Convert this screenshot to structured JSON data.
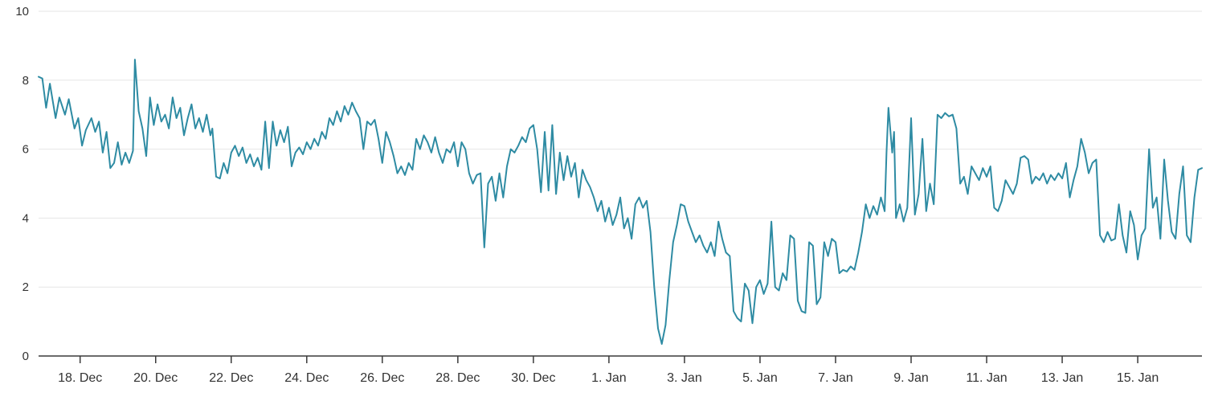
{
  "chart_data": {
    "type": "line",
    "title": "",
    "xlabel": "",
    "ylabel": "",
    "legend": "none",
    "grid": "horizontal",
    "ylim": [
      0,
      10
    ],
    "y_ticks": [
      0,
      2,
      4,
      6,
      8,
      10
    ],
    "x_domain": [
      0,
      30.8
    ],
    "x_ticks": [
      {
        "x": 1.1,
        "label": "18. Dec"
      },
      {
        "x": 3.1,
        "label": "20. Dec"
      },
      {
        "x": 5.1,
        "label": "22. Dec"
      },
      {
        "x": 7.1,
        "label": "24. Dec"
      },
      {
        "x": 9.1,
        "label": "26. Dec"
      },
      {
        "x": 11.1,
        "label": "28. Dec"
      },
      {
        "x": 13.1,
        "label": "30. Dec"
      },
      {
        "x": 15.1,
        "label": "1. Jan"
      },
      {
        "x": 17.1,
        "label": "3. Jan"
      },
      {
        "x": 19.1,
        "label": "5. Jan"
      },
      {
        "x": 21.1,
        "label": "7. Jan"
      },
      {
        "x": 23.1,
        "label": "9. Jan"
      },
      {
        "x": 25.1,
        "label": "11. Jan"
      },
      {
        "x": 27.1,
        "label": "13. Jan"
      },
      {
        "x": 29.1,
        "label": "15. Jan"
      }
    ],
    "colors": {
      "series": "#2e8ba3",
      "gridline": "#e6e6e6",
      "axis": "#3a3a3a",
      "text": "#333333"
    },
    "points": [
      [
        0,
        8.1
      ],
      [
        0.1,
        8.05
      ],
      [
        0.2,
        7.2
      ],
      [
        0.3,
        7.9
      ],
      [
        0.45,
        6.9
      ],
      [
        0.55,
        7.5
      ],
      [
        0.7,
        7.0
      ],
      [
        0.8,
        7.45
      ],
      [
        0.95,
        6.6
      ],
      [
        1.05,
        6.9
      ],
      [
        1.15,
        6.1
      ],
      [
        1.25,
        6.55
      ],
      [
        1.4,
        6.9
      ],
      [
        1.5,
        6.5
      ],
      [
        1.6,
        6.8
      ],
      [
        1.7,
        5.9
      ],
      [
        1.8,
        6.5
      ],
      [
        1.9,
        5.45
      ],
      [
        2.0,
        5.6
      ],
      [
        2.1,
        6.2
      ],
      [
        2.2,
        5.55
      ],
      [
        2.3,
        5.9
      ],
      [
        2.4,
        5.6
      ],
      [
        2.5,
        5.95
      ],
      [
        2.55,
        8.6
      ],
      [
        2.65,
        7.1
      ],
      [
        2.75,
        6.6
      ],
      [
        2.85,
        5.8
      ],
      [
        2.95,
        7.5
      ],
      [
        3.05,
        6.7
      ],
      [
        3.15,
        7.3
      ],
      [
        3.25,
        6.8
      ],
      [
        3.35,
        7.0
      ],
      [
        3.45,
        6.6
      ],
      [
        3.55,
        7.5
      ],
      [
        3.65,
        6.9
      ],
      [
        3.75,
        7.2
      ],
      [
        3.85,
        6.4
      ],
      [
        3.95,
        6.9
      ],
      [
        4.05,
        7.3
      ],
      [
        4.15,
        6.6
      ],
      [
        4.25,
        6.9
      ],
      [
        4.35,
        6.5
      ],
      [
        4.45,
        7.0
      ],
      [
        4.55,
        6.4
      ],
      [
        4.6,
        6.6
      ],
      [
        4.7,
        5.2
      ],
      [
        4.8,
        5.15
      ],
      [
        4.9,
        5.6
      ],
      [
        5.0,
        5.3
      ],
      [
        5.1,
        5.9
      ],
      [
        5.2,
        6.1
      ],
      [
        5.3,
        5.8
      ],
      [
        5.4,
        6.05
      ],
      [
        5.5,
        5.6
      ],
      [
        5.6,
        5.85
      ],
      [
        5.7,
        5.5
      ],
      [
        5.8,
        5.75
      ],
      [
        5.9,
        5.4
      ],
      [
        6.0,
        6.8
      ],
      [
        6.1,
        5.45
      ],
      [
        6.2,
        6.8
      ],
      [
        6.3,
        6.1
      ],
      [
        6.4,
        6.55
      ],
      [
        6.5,
        6.2
      ],
      [
        6.6,
        6.65
      ],
      [
        6.7,
        5.5
      ],
      [
        6.8,
        5.9
      ],
      [
        6.9,
        6.05
      ],
      [
        7.0,
        5.85
      ],
      [
        7.1,
        6.2
      ],
      [
        7.2,
        6.0
      ],
      [
        7.3,
        6.3
      ],
      [
        7.4,
        6.1
      ],
      [
        7.5,
        6.5
      ],
      [
        7.6,
        6.3
      ],
      [
        7.7,
        6.9
      ],
      [
        7.8,
        6.7
      ],
      [
        7.9,
        7.1
      ],
      [
        8.0,
        6.8
      ],
      [
        8.1,
        7.25
      ],
      [
        8.2,
        7.0
      ],
      [
        8.3,
        7.35
      ],
      [
        8.4,
        7.1
      ],
      [
        8.5,
        6.9
      ],
      [
        8.6,
        6.0
      ],
      [
        8.7,
        6.8
      ],
      [
        8.8,
        6.7
      ],
      [
        8.9,
        6.85
      ],
      [
        9.0,
        6.3
      ],
      [
        9.1,
        5.6
      ],
      [
        9.2,
        6.5
      ],
      [
        9.3,
        6.2
      ],
      [
        9.4,
        5.8
      ],
      [
        9.5,
        5.3
      ],
      [
        9.6,
        5.5
      ],
      [
        9.7,
        5.25
      ],
      [
        9.8,
        5.6
      ],
      [
        9.9,
        5.4
      ],
      [
        10.0,
        6.3
      ],
      [
        10.1,
        6.0
      ],
      [
        10.2,
        6.4
      ],
      [
        10.3,
        6.2
      ],
      [
        10.4,
        5.9
      ],
      [
        10.5,
        6.35
      ],
      [
        10.6,
        5.9
      ],
      [
        10.7,
        5.6
      ],
      [
        10.8,
        6.0
      ],
      [
        10.9,
        5.9
      ],
      [
        11.0,
        6.2
      ],
      [
        11.1,
        5.5
      ],
      [
        11.2,
        6.2
      ],
      [
        11.3,
        6.0
      ],
      [
        11.4,
        5.3
      ],
      [
        11.5,
        5.0
      ],
      [
        11.6,
        5.25
      ],
      [
        11.7,
        5.3
      ],
      [
        11.8,
        3.15
      ],
      [
        11.9,
        5.0
      ],
      [
        12.0,
        5.2
      ],
      [
        12.1,
        4.5
      ],
      [
        12.2,
        5.3
      ],
      [
        12.3,
        4.6
      ],
      [
        12.4,
        5.5
      ],
      [
        12.5,
        6.0
      ],
      [
        12.6,
        5.9
      ],
      [
        12.7,
        6.1
      ],
      [
        12.8,
        6.35
      ],
      [
        12.9,
        6.2
      ],
      [
        13.0,
        6.6
      ],
      [
        13.1,
        6.7
      ],
      [
        13.2,
        6.0
      ],
      [
        13.3,
        4.75
      ],
      [
        13.4,
        6.5
      ],
      [
        13.5,
        4.8
      ],
      [
        13.6,
        6.7
      ],
      [
        13.7,
        4.7
      ],
      [
        13.8,
        5.9
      ],
      [
        13.9,
        5.1
      ],
      [
        14.0,
        5.8
      ],
      [
        14.1,
        5.2
      ],
      [
        14.2,
        5.6
      ],
      [
        14.3,
        4.6
      ],
      [
        14.4,
        5.4
      ],
      [
        14.5,
        5.1
      ],
      [
        14.6,
        4.9
      ],
      [
        14.7,
        4.6
      ],
      [
        14.8,
        4.2
      ],
      [
        14.9,
        4.5
      ],
      [
        15.0,
        3.9
      ],
      [
        15.1,
        4.3
      ],
      [
        15.2,
        3.8
      ],
      [
        15.3,
        4.1
      ],
      [
        15.4,
        4.6
      ],
      [
        15.5,
        3.7
      ],
      [
        15.6,
        4.0
      ],
      [
        15.7,
        3.4
      ],
      [
        15.8,
        4.4
      ],
      [
        15.9,
        4.6
      ],
      [
        16.0,
        4.3
      ],
      [
        16.1,
        4.5
      ],
      [
        16.2,
        3.6
      ],
      [
        16.3,
        2.0
      ],
      [
        16.4,
        0.8
      ],
      [
        16.5,
        0.35
      ],
      [
        16.6,
        0.9
      ],
      [
        16.7,
        2.2
      ],
      [
        16.8,
        3.3
      ],
      [
        16.9,
        3.8
      ],
      [
        17.0,
        4.4
      ],
      [
        17.1,
        4.35
      ],
      [
        17.2,
        3.9
      ],
      [
        17.3,
        3.6
      ],
      [
        17.4,
        3.3
      ],
      [
        17.5,
        3.5
      ],
      [
        17.6,
        3.2
      ],
      [
        17.7,
        3.0
      ],
      [
        17.8,
        3.3
      ],
      [
        17.9,
        2.9
      ],
      [
        18.0,
        3.9
      ],
      [
        18.1,
        3.4
      ],
      [
        18.2,
        3.0
      ],
      [
        18.3,
        2.9
      ],
      [
        18.4,
        1.3
      ],
      [
        18.5,
        1.1
      ],
      [
        18.6,
        1.0
      ],
      [
        18.7,
        2.1
      ],
      [
        18.8,
        1.9
      ],
      [
        18.9,
        0.95
      ],
      [
        19.0,
        2.0
      ],
      [
        19.1,
        2.2
      ],
      [
        19.2,
        1.8
      ],
      [
        19.3,
        2.1
      ],
      [
        19.4,
        3.9
      ],
      [
        19.5,
        2.0
      ],
      [
        19.6,
        1.9
      ],
      [
        19.7,
        2.4
      ],
      [
        19.8,
        2.2
      ],
      [
        19.9,
        3.5
      ],
      [
        20.0,
        3.4
      ],
      [
        20.1,
        1.6
      ],
      [
        20.2,
        1.3
      ],
      [
        20.3,
        1.25
      ],
      [
        20.4,
        3.3
      ],
      [
        20.5,
        3.2
      ],
      [
        20.6,
        1.5
      ],
      [
        20.7,
        1.7
      ],
      [
        20.8,
        3.3
      ],
      [
        20.9,
        2.9
      ],
      [
        21.0,
        3.4
      ],
      [
        21.1,
        3.3
      ],
      [
        21.2,
        2.4
      ],
      [
        21.3,
        2.5
      ],
      [
        21.4,
        2.45
      ],
      [
        21.5,
        2.6
      ],
      [
        21.6,
        2.5
      ],
      [
        21.7,
        3.0
      ],
      [
        21.8,
        3.6
      ],
      [
        21.9,
        4.4
      ],
      [
        22.0,
        4.0
      ],
      [
        22.1,
        4.35
      ],
      [
        22.2,
        4.1
      ],
      [
        22.3,
        4.6
      ],
      [
        22.4,
        4.2
      ],
      [
        22.45,
        5.9
      ],
      [
        22.5,
        7.2
      ],
      [
        22.6,
        5.9
      ],
      [
        22.65,
        6.5
      ],
      [
        22.7,
        4.0
      ],
      [
        22.8,
        4.4
      ],
      [
        22.9,
        3.9
      ],
      [
        23.0,
        4.3
      ],
      [
        23.1,
        6.9
      ],
      [
        23.2,
        4.1
      ],
      [
        23.3,
        4.7
      ],
      [
        23.4,
        6.3
      ],
      [
        23.5,
        4.2
      ],
      [
        23.6,
        5.0
      ],
      [
        23.7,
        4.4
      ],
      [
        23.8,
        7.0
      ],
      [
        23.9,
        6.9
      ],
      [
        24.0,
        7.05
      ],
      [
        24.1,
        6.95
      ],
      [
        24.2,
        7.0
      ],
      [
        24.3,
        6.6
      ],
      [
        24.4,
        5.0
      ],
      [
        24.5,
        5.2
      ],
      [
        24.6,
        4.7
      ],
      [
        24.7,
        5.5
      ],
      [
        24.8,
        5.3
      ],
      [
        24.9,
        5.1
      ],
      [
        25.0,
        5.45
      ],
      [
        25.1,
        5.2
      ],
      [
        25.2,
        5.5
      ],
      [
        25.3,
        4.3
      ],
      [
        25.4,
        4.2
      ],
      [
        25.5,
        4.5
      ],
      [
        25.6,
        5.1
      ],
      [
        25.7,
        4.9
      ],
      [
        25.8,
        4.7
      ],
      [
        25.9,
        5.0
      ],
      [
        26.0,
        5.75
      ],
      [
        26.1,
        5.8
      ],
      [
        26.2,
        5.7
      ],
      [
        26.3,
        5.0
      ],
      [
        26.4,
        5.2
      ],
      [
        26.5,
        5.1
      ],
      [
        26.6,
        5.3
      ],
      [
        26.7,
        5.0
      ],
      [
        26.8,
        5.25
      ],
      [
        26.9,
        5.1
      ],
      [
        27.0,
        5.3
      ],
      [
        27.1,
        5.15
      ],
      [
        27.2,
        5.6
      ],
      [
        27.3,
        4.6
      ],
      [
        27.4,
        5.1
      ],
      [
        27.5,
        5.5
      ],
      [
        27.6,
        6.3
      ],
      [
        27.7,
        5.9
      ],
      [
        27.8,
        5.3
      ],
      [
        27.9,
        5.6
      ],
      [
        28.0,
        5.7
      ],
      [
        28.1,
        3.5
      ],
      [
        28.2,
        3.3
      ],
      [
        28.3,
        3.6
      ],
      [
        28.4,
        3.35
      ],
      [
        28.5,
        3.4
      ],
      [
        28.6,
        4.4
      ],
      [
        28.7,
        3.5
      ],
      [
        28.8,
        3.0
      ],
      [
        28.9,
        4.2
      ],
      [
        29.0,
        3.8
      ],
      [
        29.1,
        2.8
      ],
      [
        29.2,
        3.5
      ],
      [
        29.3,
        3.7
      ],
      [
        29.4,
        6.0
      ],
      [
        29.5,
        4.3
      ],
      [
        29.6,
        4.6
      ],
      [
        29.7,
        3.4
      ],
      [
        29.8,
        5.7
      ],
      [
        29.9,
        4.5
      ],
      [
        30.0,
        3.6
      ],
      [
        30.1,
        3.4
      ],
      [
        30.2,
        4.7
      ],
      [
        30.3,
        5.5
      ],
      [
        30.4,
        3.5
      ],
      [
        30.5,
        3.3
      ],
      [
        30.6,
        4.6
      ],
      [
        30.7,
        5.4
      ],
      [
        30.8,
        5.45
      ]
    ]
  }
}
